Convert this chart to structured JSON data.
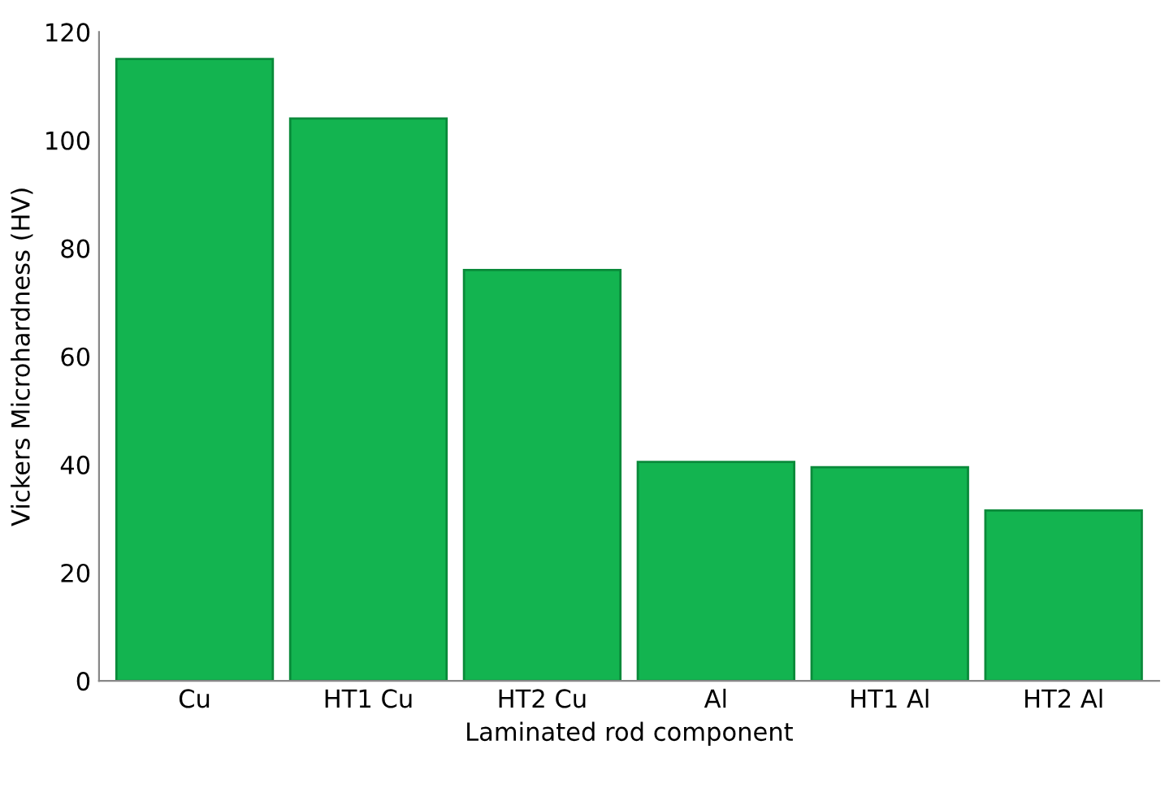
{
  "chart_data": {
    "type": "bar",
    "xlabel": "Laminated rod component",
    "ylabel": "Vickers Microhardness (HV)",
    "categories": [
      "Cu",
      "HT1 Cu",
      "HT2 Cu",
      "Al",
      "HT1 Al",
      "HT2 Al"
    ],
    "values": [
      115,
      104,
      76,
      40.5,
      39.5,
      31.5
    ],
    "color": "#13b450",
    "ylim": [
      0,
      120
    ],
    "yticks": [
      0,
      20,
      40,
      60,
      80,
      100,
      120
    ],
    "grid": false
  }
}
